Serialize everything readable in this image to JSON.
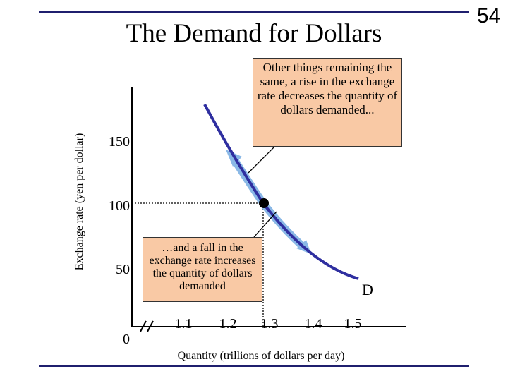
{
  "slide": {
    "number": "54",
    "title": "The Demand for Dollars"
  },
  "axes": {
    "ylabel": "Exchange rate (yen per dollar)",
    "xlabel": "Quantity (trillions of dollars per day)",
    "y_ticks": [
      "0",
      "50",
      "100",
      "150"
    ],
    "x_ticks": [
      "1.1",
      "1.2",
      "1.3",
      "1.4",
      "1.5"
    ]
  },
  "curve": {
    "label": "D",
    "color": "#2f2fa0",
    "highlight_color": "#8ab8e6"
  },
  "point": {
    "quantity": 1.3,
    "exchange_rate": 100
  },
  "callouts": {
    "rise": "Other things remaining the same, a rise in the exchange rate decreases the quantity of dollars demanded...",
    "fall": "…and a fall in the exchange rate increases the quantity of dollars demanded"
  },
  "colors": {
    "rule": "#1f1f6e",
    "callout_fill": "#f9c9a5"
  }
}
